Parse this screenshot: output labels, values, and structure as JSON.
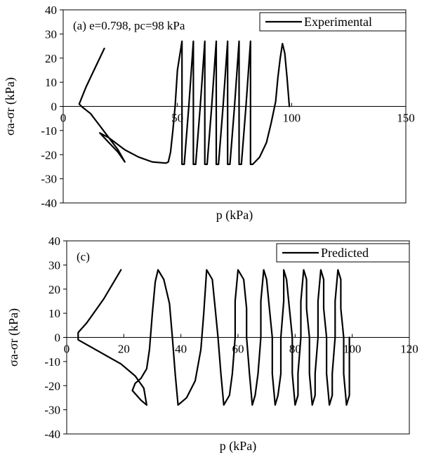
{
  "chart_data": [
    {
      "type": "line",
      "xlabel": "p (kPa)",
      "ylabel": "σa-σr (kPa)",
      "xlim": [
        0,
        150
      ],
      "ylim": [
        -40,
        40
      ],
      "xticks": [
        0,
        50,
        100,
        150
      ],
      "yticks": [
        -40,
        -30,
        -20,
        -10,
        0,
        10,
        20,
        30,
        40
      ],
      "grid": false,
      "annotation": "(a) e=0.798, pc=98 kPa",
      "legend": {
        "position": "top-right"
      },
      "series": [
        {
          "name": "Experimental",
          "color": "#000000",
          "points": [
            [
              18,
              24
            ],
            [
              14,
              16
            ],
            [
              10,
              8
            ],
            [
              7,
              1
            ],
            [
              8,
              0
            ],
            [
              12,
              -3
            ],
            [
              16,
              -8
            ],
            [
              20,
              -13
            ],
            [
              24,
              -18
            ],
            [
              27,
              -23
            ],
            [
              24,
              -19
            ],
            [
              20,
              -15
            ],
            [
              16,
              -11
            ],
            [
              20,
              -13
            ],
            [
              27,
              -18
            ],
            [
              33,
              -21
            ],
            [
              39,
              -23
            ],
            [
              45,
              -23.5
            ],
            [
              46,
              -23
            ],
            [
              47,
              -19
            ],
            [
              48,
              -10
            ],
            [
              49,
              0
            ],
            [
              50,
              15
            ],
            [
              52,
              27
            ],
            [
              52,
              -24
            ],
            [
              53,
              -24
            ],
            [
              55,
              0
            ],
            [
              57,
              27
            ],
            [
              57,
              -24
            ],
            [
              58,
              -24
            ],
            [
              60,
              0
            ],
            [
              62,
              27
            ],
            [
              62,
              -24
            ],
            [
              63,
              -24
            ],
            [
              65,
              0
            ],
            [
              67,
              27
            ],
            [
              67,
              -24
            ],
            [
              68,
              -24
            ],
            [
              70,
              0
            ],
            [
              72,
              27
            ],
            [
              72,
              -24
            ],
            [
              73,
              -24
            ],
            [
              75,
              0
            ],
            [
              77,
              27
            ],
            [
              77,
              -24
            ],
            [
              78,
              -24
            ],
            [
              80,
              0
            ],
            [
              82,
              27
            ],
            [
              82,
              -24
            ],
            [
              83,
              -24
            ],
            [
              86,
              -21
            ],
            [
              89,
              -15
            ],
            [
              91,
              -7
            ],
            [
              93,
              2
            ],
            [
              94,
              12
            ],
            [
              95,
              20
            ],
            [
              96,
              26
            ],
            [
              97,
              22
            ],
            [
              98,
              12
            ],
            [
              99,
              0
            ]
          ]
        }
      ]
    },
    {
      "type": "line",
      "xlabel": "p (kPa)",
      "ylabel": "σa-σr (kPa)",
      "xlim": [
        0,
        120
      ],
      "ylim": [
        -40,
        40
      ],
      "xticks": [
        0,
        20,
        40,
        60,
        80,
        100,
        120
      ],
      "yticks": [
        -40,
        -30,
        -20,
        -10,
        0,
        10,
        20,
        30,
        40
      ],
      "grid": false,
      "annotation": "(c)",
      "legend": {
        "position": "top-right"
      },
      "series": [
        {
          "name": "Predicted",
          "color": "#000000",
          "points": [
            [
              19,
              28
            ],
            [
              13,
              16
            ],
            [
              7,
              6
            ],
            [
              4,
              2
            ],
            [
              4,
              -1
            ],
            [
              7,
              -3
            ],
            [
              13,
              -7
            ],
            [
              19,
              -11
            ],
            [
              24,
              -16
            ],
            [
              27,
              -21
            ],
            [
              28,
              -28
            ],
            [
              26,
              -26
            ],
            [
              23,
              -22
            ],
            [
              24,
              -19
            ],
            [
              26,
              -17
            ],
            [
              28,
              -13
            ],
            [
              29,
              -5
            ],
            [
              30,
              10
            ],
            [
              31,
              23
            ],
            [
              32,
              28
            ],
            [
              34,
              24
            ],
            [
              36,
              14
            ],
            [
              37,
              0
            ],
            [
              38,
              -15
            ],
            [
              39,
              -28
            ],
            [
              42,
              -25
            ],
            [
              45,
              -18
            ],
            [
              47,
              -5
            ],
            [
              48,
              10
            ],
            [
              49,
              28
            ],
            [
              51,
              24
            ],
            [
              52,
              12
            ],
            [
              53,
              0
            ],
            [
              54,
              -15
            ],
            [
              55,
              -28
            ],
            [
              57,
              -24
            ],
            [
              58,
              -15
            ],
            [
              59,
              0
            ],
            [
              59,
              15
            ],
            [
              60,
              28
            ],
            [
              62,
              24
            ],
            [
              63,
              12
            ],
            [
              63,
              0
            ],
            [
              64,
              -15
            ],
            [
              65,
              -28
            ],
            [
              66,
              -24
            ],
            [
              67,
              -15
            ],
            [
              68,
              0
            ],
            [
              68,
              15
            ],
            [
              69,
              28
            ],
            [
              70,
              24
            ],
            [
              71,
              12
            ],
            [
              72,
              0
            ],
            [
              72,
              -15
            ],
            [
              73,
              -28
            ],
            [
              74,
              -24
            ],
            [
              75,
              -15
            ],
            [
              75,
              0
            ],
            [
              76,
              15
            ],
            [
              76,
              28
            ],
            [
              77,
              24
            ],
            [
              78,
              12
            ],
            [
              79,
              0
            ],
            [
              79,
              -15
            ],
            [
              80,
              -28
            ],
            [
              81,
              -24
            ],
            [
              81,
              -15
            ],
            [
              82,
              0
            ],
            [
              82,
              15
            ],
            [
              83,
              28
            ],
            [
              84,
              24
            ],
            [
              84,
              12
            ],
            [
              85,
              0
            ],
            [
              85,
              -15
            ],
            [
              86,
              -28
            ],
            [
              87,
              -24
            ],
            [
              87,
              -15
            ],
            [
              88,
              0
            ],
            [
              88,
              15
            ],
            [
              89,
              28
            ],
            [
              90,
              24
            ],
            [
              90,
              12
            ],
            [
              91,
              0
            ],
            [
              91,
              -15
            ],
            [
              92,
              -28
            ],
            [
              93,
              -24
            ],
            [
              93,
              -15
            ],
            [
              94,
              0
            ],
            [
              94,
              15
            ],
            [
              95,
              28
            ],
            [
              96,
              24
            ],
            [
              96,
              12
            ],
            [
              97,
              0
            ],
            [
              97,
              -15
            ],
            [
              98,
              -28
            ],
            [
              99,
              -24
            ],
            [
              99,
              -15
            ],
            [
              99,
              0
            ]
          ]
        }
      ]
    }
  ]
}
